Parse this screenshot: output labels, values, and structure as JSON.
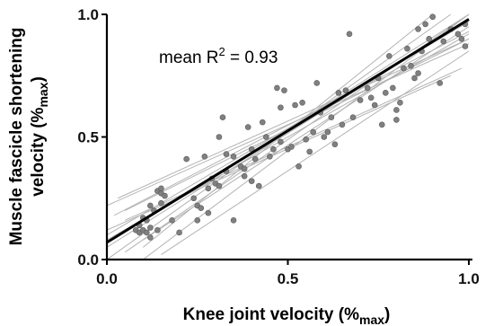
{
  "chart_data": {
    "type": "scatter",
    "xlabel": "Knee joint velocity (%",
    "xlabel_sub": "max",
    "xlabel_end": ")",
    "ylabel_line1": "Muscle fascicle shortening",
    "ylabel_line2": "velocity (%",
    "ylabel_sub": "max",
    "ylabel_end": ")",
    "annotation_prefix": "mean R",
    "annotation_sup": "2",
    "annotation_value": " = 0.93",
    "xlim": [
      0,
      1
    ],
    "ylim": [
      0,
      1
    ],
    "x_ticks": [
      "0.0",
      "0.5",
      "1.0"
    ],
    "y_ticks": [
      "0.0",
      "0.5",
      "1.0"
    ],
    "grid": false,
    "colors": {
      "points": "#808080",
      "point_edge": "#5a5a5a",
      "individual_lines": "#b3b3b3",
      "mean_line": "#000000",
      "axes": "#000000"
    },
    "mean_fit": {
      "intercept": 0.07,
      "slope": 0.91
    },
    "individual_fits": [
      {
        "x": [
          0.08,
          1.0
        ],
        "y": [
          0.14,
          1.0
        ]
      },
      {
        "x": [
          0.0,
          1.0
        ],
        "y": [
          0.1,
          0.97
        ]
      },
      {
        "x": [
          0.0,
          1.0
        ],
        "y": [
          0.05,
          0.98
        ]
      },
      {
        "x": [
          0.02,
          1.0
        ],
        "y": [
          0.18,
          0.93
        ]
      },
      {
        "x": [
          0.0,
          1.0
        ],
        "y": [
          0.22,
          0.88
        ]
      },
      {
        "x": [
          0.05,
          0.98
        ],
        "y": [
          0.16,
          0.78
        ]
      },
      {
        "x": [
          0.0,
          0.95
        ],
        "y": [
          0.12,
          0.75
        ]
      },
      {
        "x": [
          0.1,
          1.0
        ],
        "y": [
          0.0,
          1.0
        ]
      },
      {
        "x": [
          0.1,
          0.9
        ],
        "y": [
          0.05,
          1.0
        ]
      },
      {
        "x": [
          0.0,
          0.95
        ],
        "y": [
          0.0,
          1.0
        ]
      },
      {
        "x": [
          0.05,
          1.0
        ],
        "y": [
          0.03,
          1.0
        ]
      },
      {
        "x": [
          0.05,
          1.0
        ],
        "y": [
          0.2,
          0.9
        ]
      },
      {
        "x": [
          0.1,
          1.0
        ],
        "y": [
          0.08,
          0.95
        ]
      },
      {
        "x": [
          0.0,
          1.0
        ],
        "y": [
          0.08,
          0.92
        ]
      },
      {
        "x": [
          0.03,
          1.0
        ],
        "y": [
          0.25,
          0.9
        ]
      },
      {
        "x": [
          0.15,
          1.0
        ],
        "y": [
          0.02,
          0.85
        ]
      }
    ],
    "points": [
      [
        0.08,
        0.12
      ],
      [
        0.09,
        0.11
      ],
      [
        0.09,
        0.14
      ],
      [
        0.1,
        0.12
      ],
      [
        0.1,
        0.17
      ],
      [
        0.11,
        0.11
      ],
      [
        0.12,
        0.13
      ],
      [
        0.12,
        0.22
      ],
      [
        0.13,
        0.2
      ],
      [
        0.14,
        0.28
      ],
      [
        0.15,
        0.29
      ],
      [
        0.15,
        0.27
      ],
      [
        0.16,
        0.26
      ],
      [
        0.15,
        0.23
      ],
      [
        0.14,
        0.12
      ],
      [
        0.12,
        0.09
      ],
      [
        0.11,
        0.16
      ],
      [
        0.18,
        0.16
      ],
      [
        0.2,
        0.11
      ],
      [
        0.22,
        0.41
      ],
      [
        0.24,
        0.25
      ],
      [
        0.25,
        0.22
      ],
      [
        0.25,
        0.16
      ],
      [
        0.26,
        0.21
      ],
      [
        0.27,
        0.42
      ],
      [
        0.28,
        0.19
      ],
      [
        0.28,
        0.29
      ],
      [
        0.29,
        0.33
      ],
      [
        0.3,
        0.31
      ],
      [
        0.31,
        0.3
      ],
      [
        0.31,
        0.5
      ],
      [
        0.32,
        0.58
      ],
      [
        0.33,
        0.36
      ],
      [
        0.33,
        0.43
      ],
      [
        0.35,
        0.16
      ],
      [
        0.35,
        0.42
      ],
      [
        0.37,
        0.38
      ],
      [
        0.38,
        0.37
      ],
      [
        0.38,
        0.34
      ],
      [
        0.39,
        0.54
      ],
      [
        0.4,
        0.45
      ],
      [
        0.4,
        0.32
      ],
      [
        0.41,
        0.41
      ],
      [
        0.42,
        0.3
      ],
      [
        0.43,
        0.56
      ],
      [
        0.44,
        0.5
      ],
      [
        0.45,
        0.42
      ],
      [
        0.46,
        0.45
      ],
      [
        0.47,
        0.7
      ],
      [
        0.48,
        0.48
      ],
      [
        0.48,
        0.62
      ],
      [
        0.49,
        0.69
      ],
      [
        0.5,
        0.45
      ],
      [
        0.51,
        0.46
      ],
      [
        0.52,
        0.63
      ],
      [
        0.53,
        0.38
      ],
      [
        0.54,
        0.64
      ],
      [
        0.55,
        0.49
      ],
      [
        0.56,
        0.44
      ],
      [
        0.57,
        0.52
      ],
      [
        0.58,
        0.72
      ],
      [
        0.59,
        0.6
      ],
      [
        0.6,
        0.5
      ],
      [
        0.61,
        0.52
      ],
      [
        0.62,
        0.58
      ],
      [
        0.63,
        0.47
      ],
      [
        0.64,
        0.68
      ],
      [
        0.65,
        0.55
      ],
      [
        0.66,
        0.69
      ],
      [
        0.67,
        0.92
      ],
      [
        0.68,
        0.58
      ],
      [
        0.7,
        0.65
      ],
      [
        0.72,
        0.7
      ],
      [
        0.73,
        0.66
      ],
      [
        0.74,
        0.63
      ],
      [
        0.75,
        0.74
      ],
      [
        0.76,
        0.55
      ],
      [
        0.77,
        0.68
      ],
      [
        0.78,
        0.83
      ],
      [
        0.79,
        0.7
      ],
      [
        0.8,
        0.61
      ],
      [
        0.8,
        0.57
      ],
      [
        0.81,
        0.64
      ],
      [
        0.82,
        0.78
      ],
      [
        0.83,
        0.86
      ],
      [
        0.84,
        0.79
      ],
      [
        0.85,
        0.74
      ],
      [
        0.86,
        0.76
      ],
      [
        0.86,
        0.94
      ],
      [
        0.87,
        0.85
      ],
      [
        0.88,
        0.96
      ],
      [
        0.89,
        0.9
      ],
      [
        0.9,
        0.99
      ],
      [
        0.92,
        0.72
      ],
      [
        0.93,
        0.89
      ],
      [
        0.95,
        0.94
      ],
      [
        0.97,
        0.92
      ],
      [
        0.99,
        0.96
      ],
      [
        0.99,
        0.87
      ],
      [
        0.98,
        0.9
      ]
    ]
  }
}
